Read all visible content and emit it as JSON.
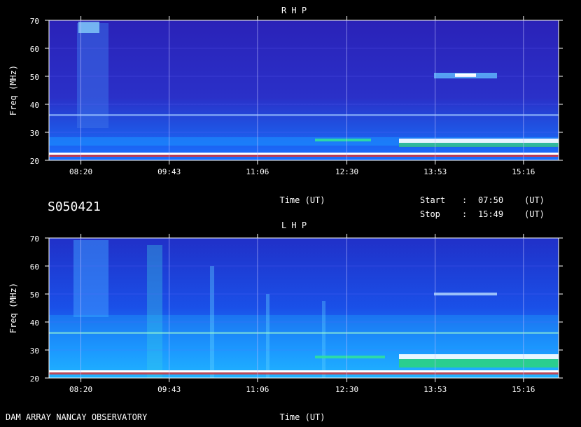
{
  "observation_id": "S050421",
  "footer_left": "DAM ARRAY  NANCAY OBSERVATORY",
  "time_info": {
    "start_label": "Start",
    "start_value": "07:50",
    "stop_label": "Stop",
    "stop_value": "15:49",
    "separator": ":",
    "unit": "(UT)"
  },
  "colors": {
    "background": "#000000",
    "low_intensity": "#1a1aa8",
    "mid_intensity": "#1a8cff",
    "high_intensity": "#ffffff",
    "interference": "#00ff66"
  },
  "chart_data": [
    {
      "type": "heatmap",
      "title": "R H P",
      "xlabel": "Time (UT)",
      "ylabel": "Freq (MHz)",
      "x_range": [
        "07:50",
        "15:49"
      ],
      "xticks": [
        "08:20",
        "09:43",
        "11:06",
        "12:30",
        "13:53",
        "15:16"
      ],
      "ylim": [
        20,
        70
      ],
      "yticks": [
        20,
        30,
        40,
        50,
        60,
        70
      ],
      "grid": true
    },
    {
      "type": "heatmap",
      "title": "L H P",
      "xlabel": "Time (UT)",
      "ylabel": "Freq (MHz)",
      "x_range": [
        "07:50",
        "15:49"
      ],
      "xticks": [
        "08:20",
        "09:43",
        "11:06",
        "12:30",
        "13:53",
        "15:16"
      ],
      "ylim": [
        20,
        70
      ],
      "yticks": [
        20,
        30,
        40,
        50,
        60,
        70
      ],
      "grid": true
    }
  ]
}
